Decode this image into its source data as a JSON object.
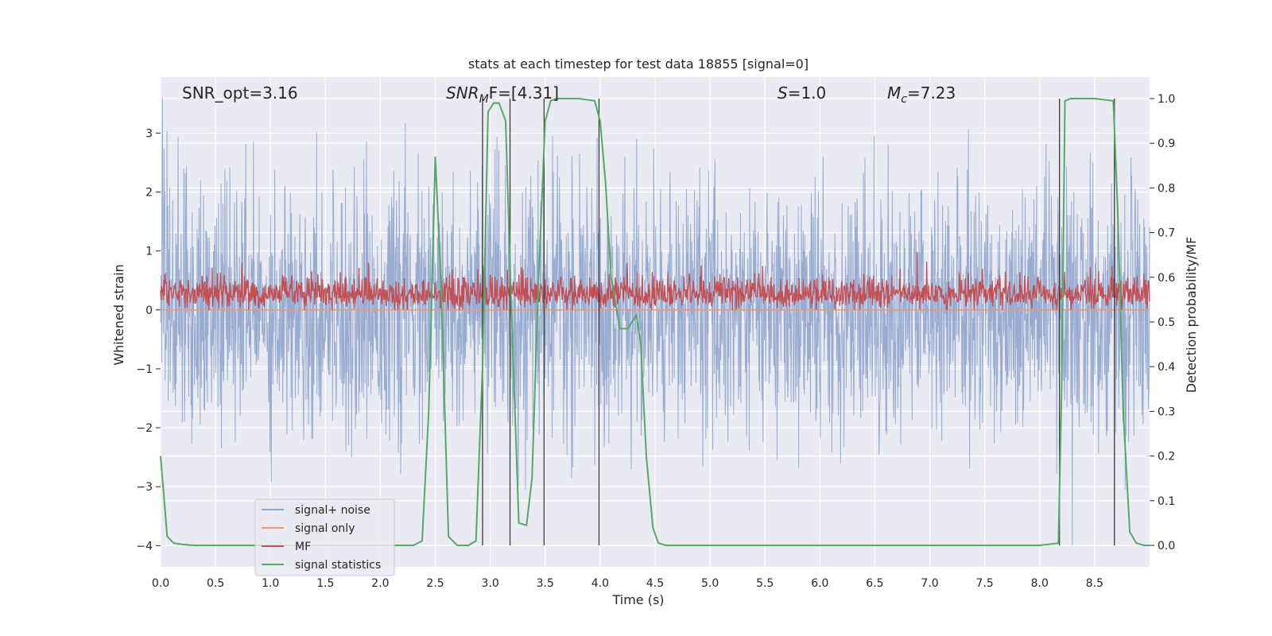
{
  "chart_data": {
    "type": "line",
    "title": "stats at each timestep for test data 18855 [signal=0]",
    "xlabel": "Time (s)",
    "ylabel": "Whitened strain",
    "y2label": "Detection probability/MF",
    "xlim": [
      0,
      9
    ],
    "ylim": [
      -4.36,
      3.95
    ],
    "y2lim": [
      -0.048,
      1.048
    ],
    "xticks": [
      0.0,
      0.5,
      1.0,
      1.5,
      2.0,
      2.5,
      3.0,
      3.5,
      4.0,
      4.5,
      5.0,
      5.5,
      6.0,
      6.5,
      7.0,
      7.5,
      8.0,
      8.5
    ],
    "yticks": [
      3,
      2,
      1,
      0,
      -1,
      -2,
      -3,
      -4
    ],
    "y2ticks": [
      1.0,
      0.9,
      0.8,
      0.7,
      0.6,
      0.5,
      0.4,
      0.3,
      0.2,
      0.1,
      0.0
    ],
    "grid": true,
    "legend_position": "lower-left",
    "annotations": {
      "snr_opt": "SNR_opt=3.16",
      "snr_mf_base": "SNR",
      "snr_mf_sub": "M",
      "snr_mf_rest": "F=[4.31]",
      "s_italic": "S",
      "s_value": "=1.0",
      "mc_base": "M",
      "mc_sub": "c",
      "mc_value": "=7.23"
    },
    "colors": {
      "noise": "#8fa5cd",
      "signal": "#e59a7a",
      "mf": "#c44e52",
      "stats": "#55a868",
      "vlines": "#3a3a3a",
      "background": "#eaeaf2"
    },
    "series": [
      {
        "name": "signal+ noise",
        "kind": "noise",
        "amplitude_range": [
          -4.0,
          3.6
        ]
      },
      {
        "name": "signal only",
        "kind": "flat",
        "value": 0.0
      },
      {
        "name": "MF",
        "kind": "mf",
        "range": [
          0.0,
          1.0
        ]
      },
      {
        "name": "signal statistics",
        "kind": "stats",
        "x": [
          0.0,
          0.06,
          0.12,
          0.2,
          0.3,
          0.5,
          1.0,
          1.5,
          2.0,
          2.3,
          2.38,
          2.44,
          2.5,
          2.55,
          2.62,
          2.7,
          2.8,
          2.87,
          2.93,
          2.98,
          3.03,
          3.08,
          3.14,
          3.19,
          3.26,
          3.33,
          3.38,
          3.44,
          3.5,
          3.55,
          3.6,
          3.8,
          3.95,
          4.0,
          4.05,
          4.1,
          4.18,
          4.25,
          4.33,
          4.37,
          4.42,
          4.48,
          4.53,
          4.6,
          4.7,
          5.0,
          6.0,
          7.0,
          8.0,
          8.17,
          8.2,
          8.23,
          8.28,
          8.33,
          8.5,
          8.67,
          8.71,
          8.76,
          8.82,
          8.88,
          8.95,
          9.0
        ],
        "y": [
          0.2,
          0.02,
          0.005,
          0.002,
          0.0,
          0.0,
          0.0,
          0.0,
          0.0,
          0.0,
          0.01,
          0.3,
          0.87,
          0.6,
          0.02,
          0.0,
          0.0,
          0.01,
          0.4,
          0.97,
          0.99,
          0.99,
          0.95,
          0.55,
          0.05,
          0.045,
          0.15,
          0.6,
          0.95,
          0.995,
          1.0,
          1.0,
          0.995,
          0.95,
          0.81,
          0.6,
          0.485,
          0.485,
          0.515,
          0.45,
          0.2,
          0.04,
          0.005,
          0.0,
          0.0,
          0.0,
          0.0,
          0.0,
          0.0,
          0.005,
          0.35,
          0.995,
          1.0,
          1.0,
          1.0,
          0.995,
          0.75,
          0.3,
          0.03,
          0.005,
          0.0,
          0.0
        ]
      }
    ],
    "vlines_x": [
      2.93,
      3.18,
      3.49,
      3.99,
      8.18,
      8.68
    ]
  }
}
